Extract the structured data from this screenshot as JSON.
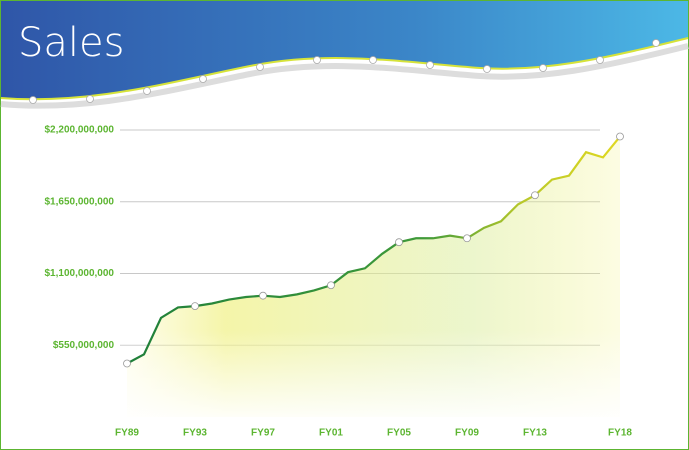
{
  "chart_data": {
    "type": "line",
    "title": "Sales",
    "categories": [
      "FY89",
      null,
      null,
      null,
      "FY93",
      null,
      null,
      null,
      "FY97",
      null,
      null,
      null,
      "FY01",
      null,
      null,
      null,
      "FY05",
      null,
      null,
      null,
      "FY09",
      null,
      null,
      null,
      "FY13",
      null,
      null,
      null,
      null,
      "FY18"
    ],
    "series": [
      {
        "name": "Sales",
        "color": "#2f8f3e",
        "values": [
          410000000,
          480000000,
          760000000,
          840000000,
          850000000,
          870000000,
          900000000,
          920000000,
          930000000,
          920000000,
          940000000,
          970000000,
          1010000000,
          1110000000,
          1140000000,
          1250000000,
          1340000000,
          1370000000,
          1370000000,
          1390000000,
          1370000000,
          1450000000,
          1500000000,
          1630000000,
          1700000000,
          1820000000,
          1850000000,
          2030000000,
          1990000000,
          2150000000
        ]
      }
    ],
    "ylim": [
      0,
      2200000000
    ],
    "yticks": [
      {
        "value": 550000000,
        "label": "$550,000,000"
      },
      {
        "value": 1100000000,
        "label": "$1,100,000,000"
      },
      {
        "value": 1650000000,
        "label": "$1,650,000,000"
      },
      {
        "value": 2200000000,
        "label": "$2,200,000,000"
      }
    ],
    "grid": true
  }
}
